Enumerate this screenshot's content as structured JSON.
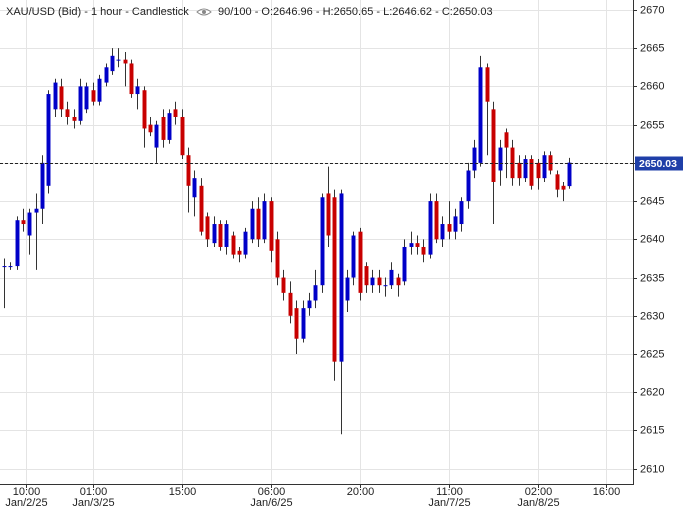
{
  "chart_data": {
    "type": "candlestick",
    "title": "XAU/USD (Bid) - 1 hour - Candlestick",
    "subtitle": "90/100 - O:2646.96 - H:2650.65 - L:2646.62 - C:2650.03",
    "up_color": "#0000c8",
    "down_color": "#c80000",
    "grid": true,
    "last_price": 2650.03,
    "ylim": [
      2608,
      2671.3
    ],
    "yticks": [
      2610,
      2615,
      2620,
      2625,
      2630,
      2635,
      2640,
      2645,
      2650,
      2655,
      2660,
      2665,
      2670
    ],
    "xlim": [
      -0.6,
      99
    ],
    "xticks": [
      {
        "value": 3.5,
        "label": "10:00",
        "date": "Jan/2/25"
      },
      {
        "value": 14,
        "label": "01:00",
        "date": "Jan/3/25"
      },
      {
        "value": 28,
        "label": "15:00"
      },
      {
        "value": 42,
        "label": "06:00",
        "date": "Jan/6/25"
      },
      {
        "value": 56,
        "label": "20:00"
      },
      {
        "value": 70,
        "label": "11:00",
        "date": "Jan/7/25"
      },
      {
        "value": 84,
        "label": "02:00",
        "date": "Jan/8/25"
      },
      {
        "value": 94.7,
        "label": "16:00"
      }
    ],
    "ohlc": [
      [
        2636.5,
        2637.5,
        2631,
        2636.5
      ],
      [
        2636.5,
        2637,
        2636,
        2636.5
      ],
      [
        2636.5,
        2643,
        2636,
        2642.5
      ],
      [
        2642.5,
        2644,
        2641,
        2642
      ],
      [
        2640.5,
        2644,
        2638,
        2643.5
      ],
      [
        2643.5,
        2646,
        2636,
        2644
      ],
      [
        2644,
        2651,
        2642,
        2650
      ],
      [
        2647,
        2659.5,
        2646,
        2659
      ],
      [
        2657,
        2661,
        2656,
        2660.5
      ],
      [
        2660,
        2661,
        2656,
        2657
      ],
      [
        2657,
        2658,
        2655,
        2656
      ],
      [
        2656,
        2657,
        2654.5,
        2655.5
      ],
      [
        2655.5,
        2661,
        2655,
        2660
      ],
      [
        2657,
        2660.5,
        2656.5,
        2660
      ],
      [
        2659.5,
        2660.5,
        2657.5,
        2658
      ],
      [
        2658,
        2661.5,
        2657.5,
        2661
      ],
      [
        2660.5,
        2663,
        2660,
        2662.5
      ],
      [
        2662,
        2665,
        2661.5,
        2664
      ],
      [
        2663.5,
        2665,
        2662.5,
        2663.5
      ],
      [
        2663.5,
        2664.5,
        2660,
        2663
      ],
      [
        2663,
        2663.5,
        2658.5,
        2659
      ],
      [
        2659,
        2661,
        2657,
        2660
      ],
      [
        2659.5,
        2660,
        2652,
        2654.5
      ],
      [
        2655,
        2656,
        2653.5,
        2654
      ],
      [
        2652,
        2655.5,
        2650,
        2655
      ],
      [
        2656,
        2657,
        2652,
        2653
      ],
      [
        2653,
        2657,
        2652.5,
        2656.5
      ],
      [
        2657,
        2658,
        2655,
        2656
      ],
      [
        2656,
        2657,
        2650.5,
        2651
      ],
      [
        2651,
        2652,
        2643.5,
        2647
      ],
      [
        2645.5,
        2649,
        2643,
        2648
      ],
      [
        2647,
        2648,
        2640.5,
        2641
      ],
      [
        2643,
        2643.5,
        2639,
        2640
      ],
      [
        2639.5,
        2643,
        2639,
        2642
      ],
      [
        2642,
        2642.5,
        2638.5,
        2639
      ],
      [
        2639,
        2642.5,
        2638,
        2642
      ],
      [
        2640.5,
        2641,
        2637.5,
        2638
      ],
      [
        2638.5,
        2639,
        2637,
        2638
      ],
      [
        2638,
        2641.5,
        2637.5,
        2641
      ],
      [
        2640,
        2645,
        2639.5,
        2644
      ],
      [
        2644,
        2645.5,
        2639,
        2640
      ],
      [
        2640,
        2646,
        2639.5,
        2645
      ],
      [
        2645,
        2645.5,
        2637,
        2638.5
      ],
      [
        2640,
        2641,
        2634,
        2635
      ],
      [
        2635,
        2636,
        2632,
        2633
      ],
      [
        2633,
        2634.5,
        2629,
        2630
      ],
      [
        2631,
        2632,
        2625,
        2627
      ],
      [
        2627,
        2632,
        2626.5,
        2631
      ],
      [
        2631,
        2633,
        2630,
        2632
      ],
      [
        2632,
        2636,
        2631,
        2634
      ],
      [
        2634,
        2646,
        2633,
        2645.5
      ],
      [
        2646,
        2649.5,
        2639,
        2640.5
      ],
      [
        2645.5,
        2646.5,
        2621.5,
        2624
      ],
      [
        2624,
        2646.5,
        2614.5,
        2646
      ],
      [
        2632,
        2636,
        2630.5,
        2635
      ],
      [
        2635,
        2641,
        2634,
        2640.5
      ],
      [
        2641,
        2641.5,
        2632,
        2633
      ],
      [
        2636.5,
        2637,
        2633,
        2634
      ],
      [
        2634,
        2636,
        2633,
        2635
      ],
      [
        2635,
        2636,
        2633,
        2634
      ],
      [
        2634,
        2635,
        2632.5,
        2634
      ],
      [
        2634,
        2637,
        2633.5,
        2636
      ],
      [
        2635,
        2635.5,
        2632.5,
        2634
      ],
      [
        2634.5,
        2640,
        2634,
        2639
      ],
      [
        2639,
        2641,
        2638,
        2639.5
      ],
      [
        2639.5,
        2640.5,
        2638,
        2639
      ],
      [
        2639,
        2640,
        2637,
        2638
      ],
      [
        2638,
        2646,
        2637.5,
        2645
      ],
      [
        2645,
        2646,
        2639.5,
        2640
      ],
      [
        2640,
        2643,
        2639,
        2642
      ],
      [
        2642,
        2645,
        2640,
        2641
      ],
      [
        2641,
        2644,
        2640,
        2643
      ],
      [
        2642,
        2645.5,
        2641,
        2645
      ],
      [
        2645,
        2650,
        2644,
        2649
      ],
      [
        2649,
        2653,
        2648,
        2652
      ],
      [
        2650,
        2664,
        2649.5,
        2662.5
      ],
      [
        2662.5,
        2663,
        2651,
        2658
      ],
      [
        2657,
        2658,
        2642,
        2647.5
      ],
      [
        2649,
        2653,
        2647,
        2652
      ],
      [
        2654,
        2654.5,
        2648,
        2652
      ],
      [
        2652,
        2653,
        2647,
        2648
      ],
      [
        2650,
        2651,
        2647,
        2648
      ],
      [
        2648,
        2651,
        2647.5,
        2650.5
      ],
      [
        2650.5,
        2651,
        2646.5,
        2647
      ],
      [
        2650,
        2650.5,
        2646.5,
        2648
      ],
      [
        2648,
        2651.5,
        2647.5,
        2651
      ],
      [
        2651,
        2651.5,
        2648.5,
        2649
      ],
      [
        2648.5,
        2649,
        2645.5,
        2646.5
      ],
      [
        2647,
        2647.5,
        2645,
        2646.5
      ],
      [
        2646.96,
        2650.65,
        2646.62,
        2650.03
      ]
    ]
  }
}
